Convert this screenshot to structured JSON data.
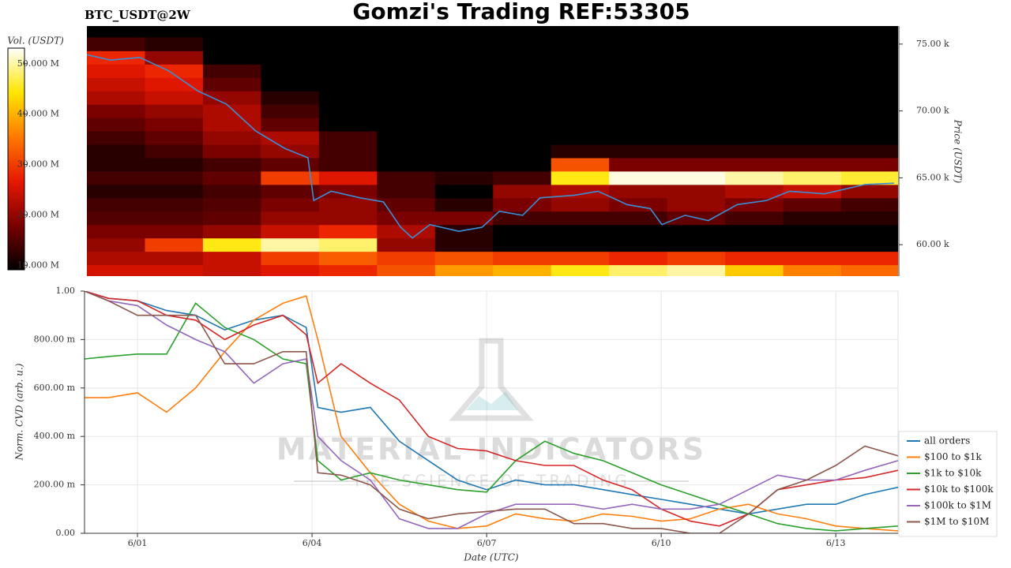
{
  "chart_data": [
    {
      "type": "heatmap",
      "title": "Gomzi's Trading REF:53305",
      "subtitle": "BTC_USDT@2W",
      "colorbar_label": "Vol. (USDT)",
      "ylabel": "Price (USDT)",
      "colorscale": [
        "#000000",
        "#7a0000",
        "#e81800",
        "#ff7a00",
        "#ffe600",
        "#ffffff"
      ],
      "clim": [
        9100000,
        53100000
      ],
      "cticks": [
        {
          "value": 10000000,
          "label": "10.000 M"
        },
        {
          "value": 20000000,
          "label": "20.000 M"
        },
        {
          "value": 30000000,
          "label": "30.000 M"
        },
        {
          "value": 40000000,
          "label": "40.000 M"
        },
        {
          "value": 50000000,
          "label": "50.000 M"
        }
      ],
      "xlim": [
        0.09,
        14.07
      ],
      "ylim": [
        57650,
        76350
      ],
      "yticks": [
        {
          "value": 60000,
          "label": "60.00 k"
        },
        {
          "value": 65000,
          "label": "65.00 k"
        },
        {
          "value": 70000,
          "label": "70.00 k"
        },
        {
          "value": 75000,
          "label": "75.00 k"
        }
      ],
      "x_bins": [
        0.09,
        1.09,
        2.09,
        3.09,
        4.09,
        5.09,
        6.09,
        7.09,
        8.09,
        9.09,
        10.09,
        11.09,
        12.09,
        13.09,
        14.07
      ],
      "y_bins": [
        57500,
        58500,
        59500,
        60500,
        61500,
        62500,
        63500,
        64500,
        65500,
        66500,
        67500,
        68500,
        69500,
        70500,
        71500,
        72500,
        73500,
        74500,
        75500
      ],
      "z": [
        [
          25000000,
          25000000,
          24000000,
          26000000,
          28000000,
          32000000,
          38000000,
          40000000,
          45000000,
          48000000,
          50000000,
          42000000,
          36000000,
          34000000
        ],
        [
          22000000,
          22000000,
          24000000,
          30000000,
          33000000,
          30000000,
          32000000,
          30000000,
          30000000,
          28000000,
          30000000,
          28000000,
          28000000,
          28000000
        ],
        [
          20000000,
          30000000,
          45000000,
          50000000,
          48000000,
          20000000,
          12000000,
          0,
          0,
          0,
          0,
          0,
          0,
          0
        ],
        [
          18000000,
          18000000,
          20000000,
          24000000,
          28000000,
          22000000,
          12000000,
          0,
          0,
          0,
          0,
          0,
          0,
          0
        ],
        [
          15000000,
          15000000,
          16000000,
          20000000,
          20000000,
          18000000,
          18000000,
          14000000,
          14000000,
          14000000,
          16000000,
          14000000,
          12000000,
          12000000
        ],
        [
          14000000,
          14000000,
          15000000,
          18000000,
          20000000,
          16000000,
          12000000,
          18000000,
          20000000,
          18000000,
          20000000,
          18000000,
          16000000,
          14000000
        ],
        [
          12000000,
          12000000,
          14000000,
          16000000,
          18000000,
          14000000,
          0,
          20000000,
          22000000,
          20000000,
          20000000,
          22000000,
          24000000,
          20000000
        ],
        [
          14000000,
          14000000,
          16000000,
          30000000,
          26000000,
          14000000,
          12000000,
          14000000,
          45000000,
          52000000,
          52000000,
          50000000,
          48000000,
          46000000
        ],
        [
          12000000,
          12000000,
          14000000,
          16000000,
          14000000,
          0,
          0,
          0,
          32000000,
          18000000,
          18000000,
          18000000,
          18000000,
          18000000
        ],
        [
          12000000,
          14000000,
          18000000,
          20000000,
          14000000,
          0,
          0,
          0,
          12000000,
          12000000,
          12000000,
          12000000,
          12000000,
          12000000
        ],
        [
          14000000,
          16000000,
          20000000,
          22000000,
          14000000,
          0,
          0,
          0,
          0,
          0,
          0,
          0,
          0,
          0
        ],
        [
          16000000,
          18000000,
          22000000,
          16000000,
          0,
          0,
          0,
          0,
          0,
          0,
          0,
          0,
          0,
          0
        ],
        [
          18000000,
          20000000,
          22000000,
          14000000,
          0,
          0,
          0,
          0,
          0,
          0,
          0,
          0,
          0,
          0
        ],
        [
          22000000,
          24000000,
          20000000,
          12000000,
          0,
          0,
          0,
          0,
          0,
          0,
          0,
          0,
          0,
          0
        ],
        [
          24000000,
          26000000,
          16000000,
          0,
          0,
          0,
          0,
          0,
          0,
          0,
          0,
          0,
          0,
          0
        ],
        [
          26000000,
          28000000,
          14000000,
          0,
          0,
          0,
          0,
          0,
          0,
          0,
          0,
          0,
          0,
          0
        ],
        [
          28000000,
          20000000,
          0,
          0,
          0,
          0,
          0,
          0,
          0,
          0,
          0,
          0,
          0,
          0
        ],
        [
          14000000,
          12000000,
          0,
          0,
          0,
          0,
          0,
          0,
          0,
          0,
          0,
          0,
          0,
          0
        ]
      ],
      "price": {
        "color": "#3b8fd4",
        "x": [
          0.09,
          0.5,
          1.0,
          1.5,
          2.0,
          2.5,
          3.0,
          3.5,
          3.9,
          4.0,
          4.3,
          4.8,
          5.2,
          5.5,
          5.7,
          6.0,
          6.5,
          6.9,
          7.2,
          7.6,
          7.9,
          8.5,
          8.9,
          9.4,
          9.8,
          10.0,
          10.4,
          10.8,
          11.3,
          11.8,
          12.2,
          12.8,
          13.5,
          14.0
        ],
        "values": [
          74200,
          73800,
          74000,
          73000,
          71500,
          70500,
          68500,
          67200,
          66500,
          63300,
          64000,
          63500,
          63200,
          61300,
          60500,
          61500,
          61000,
          61300,
          62500,
          62200,
          63500,
          63700,
          64000,
          63000,
          62700,
          61500,
          62200,
          61800,
          63000,
          63300,
          64000,
          63800,
          64500,
          64600
        ]
      }
    },
    {
      "type": "line",
      "xlabel": "Date (UTC)",
      "ylabel": "Norm. CVD (arb. u.)",
      "watermark": [
        "MATERIAL INDICATORS",
        "THE SCIENCE OF TRADING"
      ],
      "xlim": [
        0.09,
        14.07
      ],
      "xticks": [
        {
          "value": 1,
          "label": "6/01"
        },
        {
          "value": 4,
          "label": "6/04"
        },
        {
          "value": 7,
          "label": "6/07"
        },
        {
          "value": 10,
          "label": "6/10"
        },
        {
          "value": 13,
          "label": "6/13"
        }
      ],
      "ylim": [
        0,
        1
      ],
      "yticks": [
        {
          "value": 0,
          "label": "0.00"
        },
        {
          "value": 0.2,
          "label": "200.00 m"
        },
        {
          "value": 0.4,
          "label": "400.00 m"
        },
        {
          "value": 0.6,
          "label": "600.00 m"
        },
        {
          "value": 0.8,
          "label": "800.00 m"
        },
        {
          "value": 1,
          "label": "1.00"
        }
      ],
      "grid": true,
      "legend": "lower right",
      "x": [
        0.09,
        0.5,
        1.0,
        1.5,
        2.0,
        2.5,
        3.0,
        3.5,
        3.9,
        4.1,
        4.5,
        5.0,
        5.5,
        6.0,
        6.5,
        7.0,
        7.5,
        8.0,
        8.5,
        9.0,
        9.5,
        10.0,
        10.5,
        11.0,
        11.5,
        12.0,
        12.5,
        13.0,
        13.5,
        14.07
      ],
      "series": [
        {
          "name": "all orders",
          "color": "#1f77b4",
          "values": [
            1.0,
            0.97,
            0.96,
            0.92,
            0.9,
            0.84,
            0.88,
            0.9,
            0.85,
            0.52,
            0.5,
            0.52,
            0.38,
            0.3,
            0.22,
            0.18,
            0.22,
            0.2,
            0.2,
            0.18,
            0.16,
            0.14,
            0.12,
            0.1,
            0.08,
            0.1,
            0.12,
            0.12,
            0.16,
            0.19
          ]
        },
        {
          "name": "$100 to $1k",
          "color": "#ff7f0e",
          "values": [
            0.56,
            0.56,
            0.58,
            0.5,
            0.6,
            0.75,
            0.88,
            0.95,
            0.98,
            0.8,
            0.4,
            0.25,
            0.12,
            0.05,
            0.02,
            0.03,
            0.08,
            0.06,
            0.05,
            0.08,
            0.07,
            0.05,
            0.06,
            0.1,
            0.12,
            0.08,
            0.06,
            0.03,
            0.02,
            0.01
          ]
        },
        {
          "name": "$1k to $10k",
          "color": "#2ca02c",
          "values": [
            0.72,
            0.73,
            0.74,
            0.74,
            0.95,
            0.85,
            0.8,
            0.72,
            0.7,
            0.3,
            0.22,
            0.25,
            0.22,
            0.2,
            0.18,
            0.17,
            0.3,
            0.38,
            0.33,
            0.3,
            0.25,
            0.2,
            0.16,
            0.12,
            0.08,
            0.04,
            0.02,
            0.01,
            0.02,
            0.03
          ]
        },
        {
          "name": "$10k to $100k",
          "color": "#d62728",
          "values": [
            1.0,
            0.97,
            0.96,
            0.9,
            0.88,
            0.8,
            0.86,
            0.9,
            0.82,
            0.62,
            0.7,
            0.62,
            0.55,
            0.4,
            0.35,
            0.34,
            0.3,
            0.28,
            0.28,
            0.22,
            0.18,
            0.1,
            0.05,
            0.03,
            0.08,
            0.18,
            0.2,
            0.22,
            0.23,
            0.26
          ]
        },
        {
          "name": "$100k to $1M",
          "color": "#9467bd",
          "values": [
            1.0,
            0.96,
            0.94,
            0.86,
            0.8,
            0.75,
            0.62,
            0.7,
            0.72,
            0.4,
            0.3,
            0.22,
            0.06,
            0.02,
            0.02,
            0.08,
            0.12,
            0.12,
            0.12,
            0.1,
            0.12,
            0.1,
            0.1,
            0.12,
            0.18,
            0.24,
            0.22,
            0.22,
            0.26,
            0.3
          ]
        },
        {
          "name": "$1M to $10M",
          "color": "#8c564b",
          "values": [
            1.0,
            0.96,
            0.9,
            0.9,
            0.9,
            0.7,
            0.7,
            0.75,
            0.75,
            0.25,
            0.24,
            0.2,
            0.1,
            0.06,
            0.08,
            0.09,
            0.1,
            0.1,
            0.04,
            0.04,
            0.02,
            0.02,
            0.0,
            0.0,
            0.08,
            0.18,
            0.22,
            0.28,
            0.36,
            0.32
          ]
        }
      ]
    }
  ]
}
